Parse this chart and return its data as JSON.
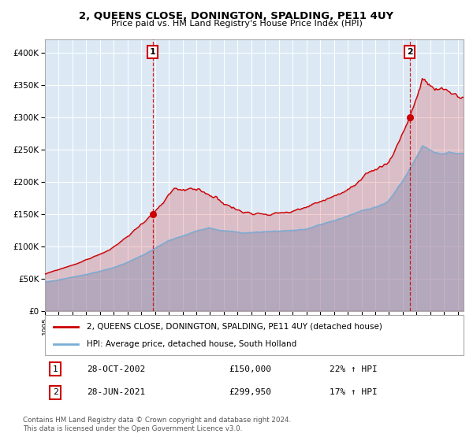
{
  "title": "2, QUEENS CLOSE, DONINGTON, SPALDING, PE11 4UY",
  "subtitle": "Price paid vs. HM Land Registry's House Price Index (HPI)",
  "bg_color": "#dce9f5",
  "red_line_color": "#cc0000",
  "blue_line_color": "#7aaed6",
  "sale1_date_idx": 94,
  "sale1_price": 150000,
  "sale2_date_idx": 318,
  "sale2_price": 299950,
  "ylim": [
    0,
    420000
  ],
  "yticks": [
    0,
    50000,
    100000,
    150000,
    200000,
    250000,
    300000,
    350000,
    400000
  ],
  "ytick_labels": [
    "£0",
    "£50K",
    "£100K",
    "£150K",
    "£200K",
    "£250K",
    "£300K",
    "£350K",
    "£400K"
  ],
  "legend_red": "2, QUEENS CLOSE, DONINGTON, SPALDING, PE11 4UY (detached house)",
  "legend_blue": "HPI: Average price, detached house, South Holland",
  "sale1_text": "28-OCT-2002",
  "sale1_amount": "£150,000",
  "sale1_hpi": "22% ↑ HPI",
  "sale2_text": "28-JUN-2021",
  "sale2_amount": "£299,950",
  "sale2_hpi": "17% ↑ HPI",
  "footer": "Contains HM Land Registry data © Crown copyright and database right 2024.\nThis data is licensed under the Open Government Licence v3.0.",
  "n_months": 366
}
